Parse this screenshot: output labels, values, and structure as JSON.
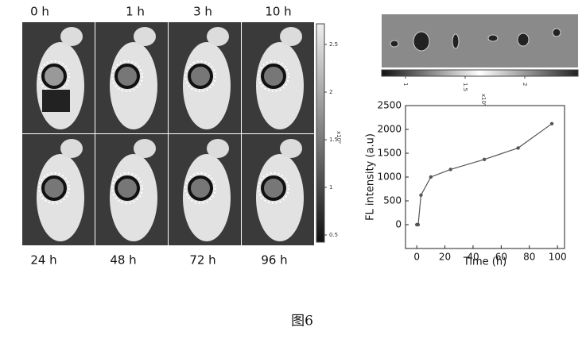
{
  "imaging": {
    "time_labels": [
      "0 h",
      "1 h",
      "3 h",
      "10 h",
      "24 h",
      "48 h",
      "72 h",
      "96 h"
    ],
    "colorbar_ticks": [
      0.5,
      1.0,
      1.5,
      2.0,
      2.5
    ],
    "colorbar_unit": "x10⁹",
    "organ_colorbar_ticks": [
      1.0,
      1.5,
      2.0
    ],
    "organ_colorbar_unit": "x10⁸"
  },
  "chart_data": {
    "type": "line",
    "x_label": "Time (h)",
    "y_label": "FL intensity (a.u)",
    "x": [
      0,
      1,
      3,
      10,
      24,
      48,
      72,
      96
    ],
    "values": [
      0,
      0,
      620,
      1000,
      1160,
      1370,
      1610,
      2120
    ],
    "color": "#555555",
    "xlim": [
      -8,
      105
    ],
    "xticks": [
      0,
      20,
      40,
      60,
      80,
      100
    ],
    "ylim": [
      -500,
      2500
    ],
    "yticks": [
      0,
      500,
      1000,
      1500,
      2000,
      2500
    ]
  },
  "caption": "图6"
}
